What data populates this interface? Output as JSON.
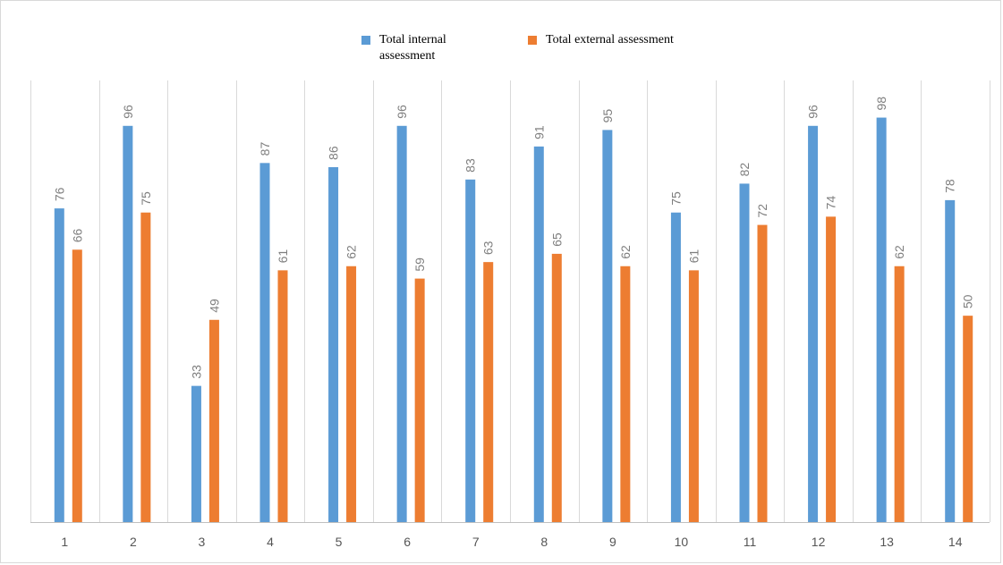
{
  "chart_data": {
    "type": "bar",
    "categories": [
      "1",
      "2",
      "3",
      "4",
      "5",
      "6",
      "7",
      "8",
      "9",
      "10",
      "11",
      "12",
      "13",
      "14"
    ],
    "series": [
      {
        "name": "Total internal\nassessment",
        "color": "#5b9bd5",
        "values": [
          76,
          96,
          33,
          87,
          86,
          96,
          83,
          91,
          95,
          75,
          82,
          96,
          98,
          78
        ]
      },
      {
        "name": "Total external assessment",
        "color": "#ed7d31",
        "values": [
          66,
          75,
          49,
          61,
          62,
          59,
          63,
          65,
          62,
          61,
          72,
          74,
          62,
          50
        ]
      }
    ],
    "legend_position": "top",
    "vertical_grid": true,
    "data_labels": true,
    "ylim": [
      0,
      107
    ]
  }
}
